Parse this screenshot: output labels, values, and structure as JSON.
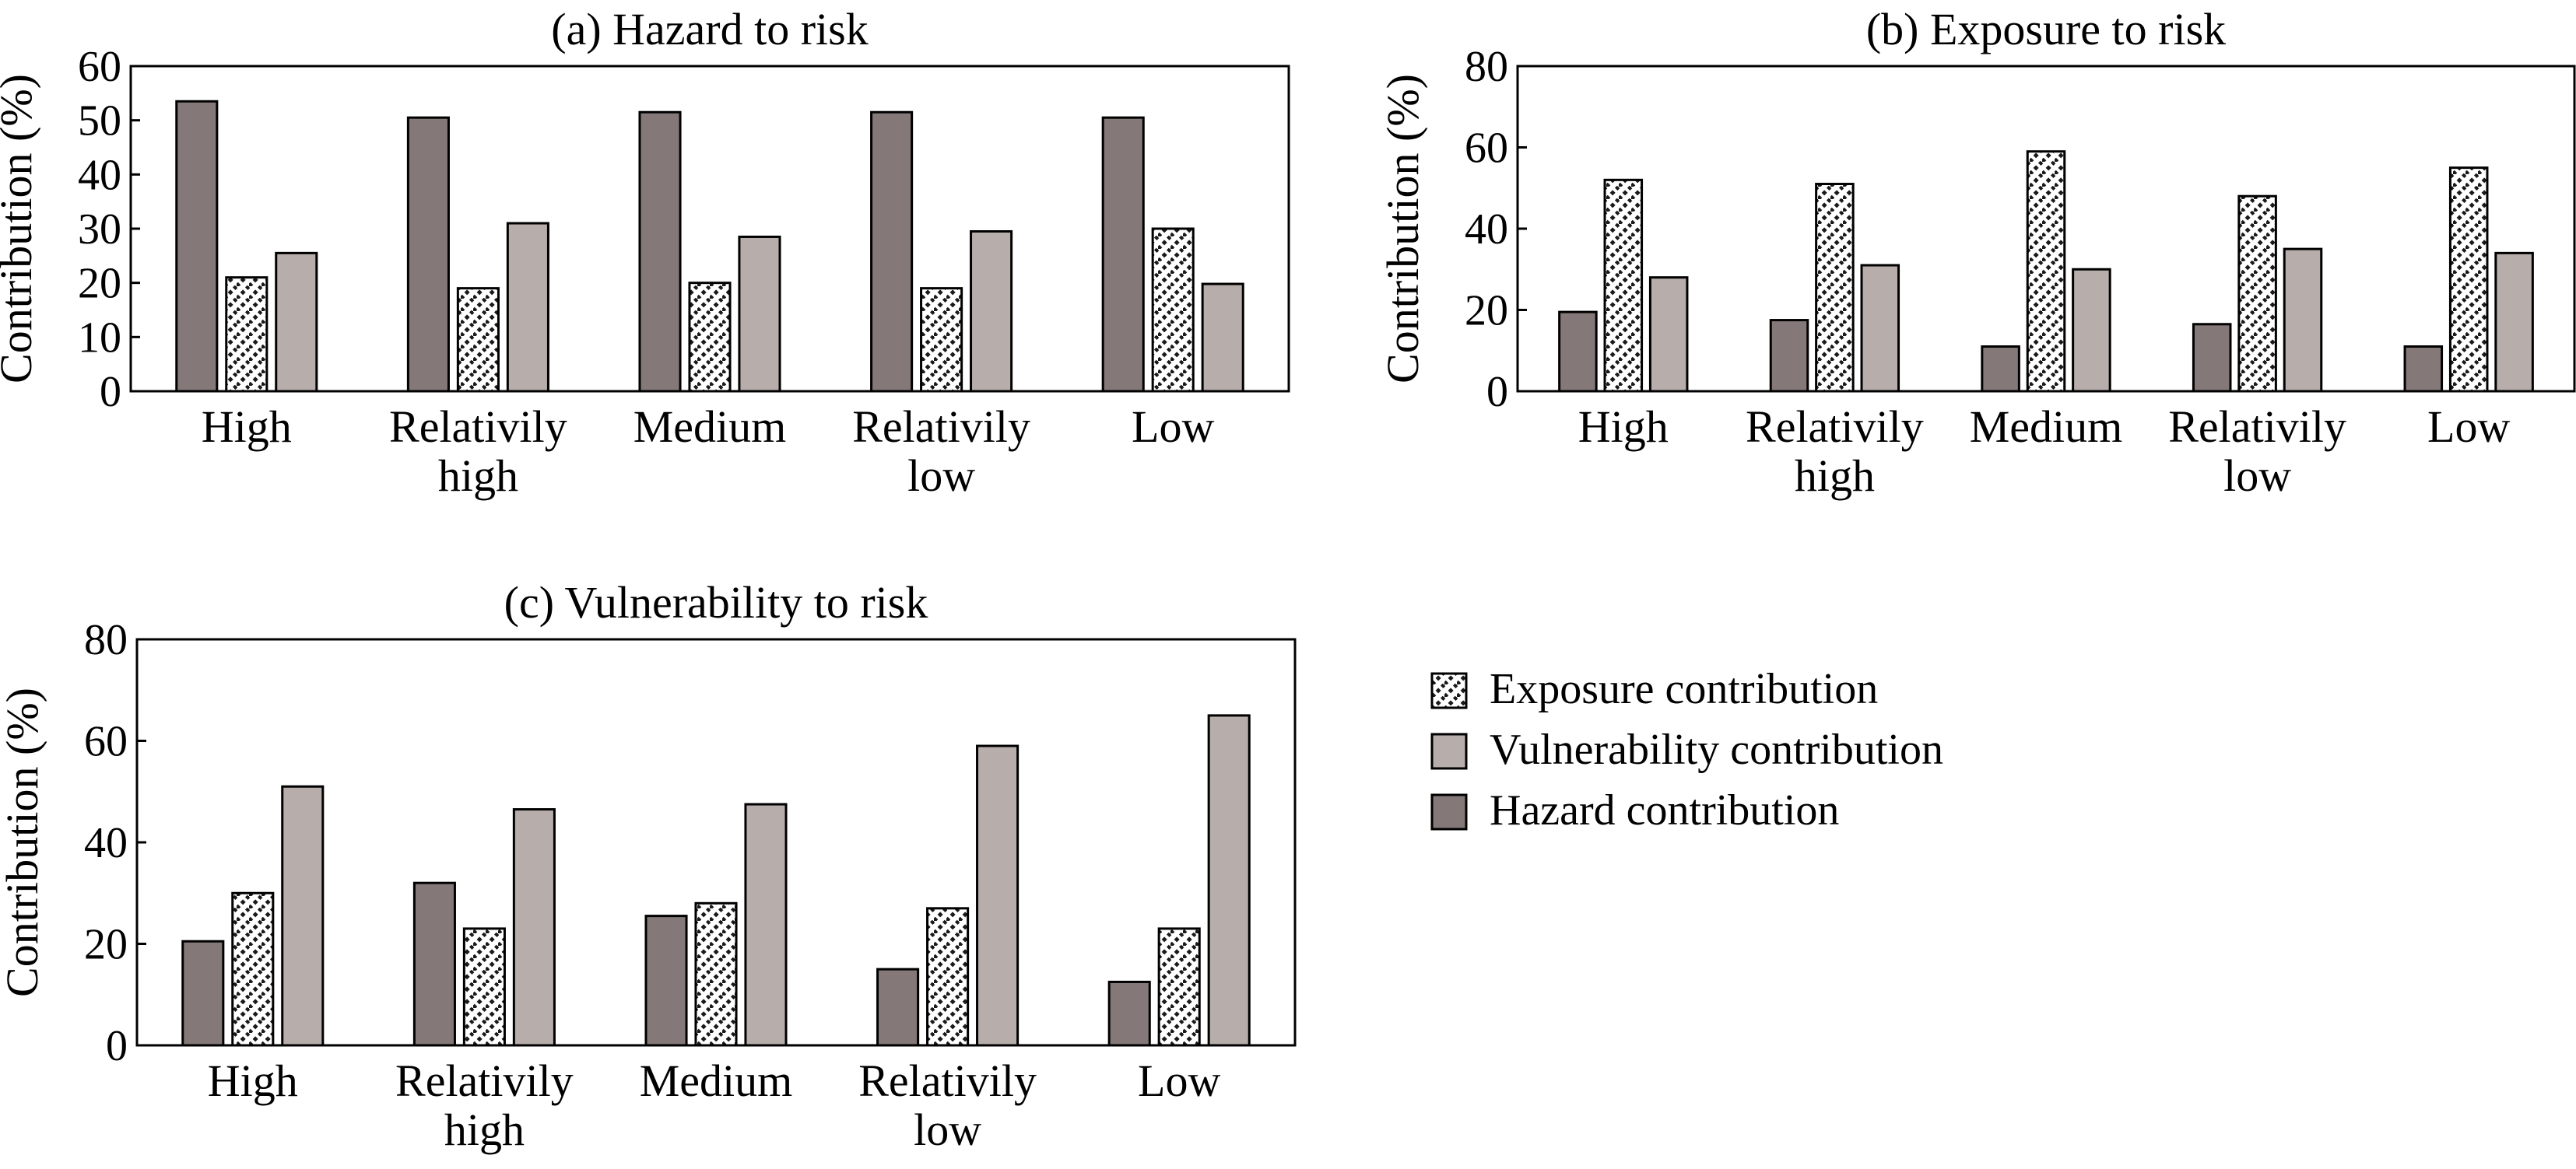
{
  "chart_data": [
    {
      "type": "bar",
      "title": "(a) Hazard to risk",
      "ylabel": "Contribution (%)",
      "xlabel": "",
      "ylim": [
        0,
        60
      ],
      "yticks": [
        0,
        10,
        20,
        30,
        40,
        50,
        60
      ],
      "categories": [
        [
          "High"
        ],
        [
          "Relativily",
          "high"
        ],
        [
          "Medium"
        ],
        [
          "Relativily",
          "low"
        ],
        [
          "Low"
        ]
      ],
      "series": [
        {
          "key": "hazard",
          "values": [
            53.5,
            50.5,
            51.5,
            51.5,
            50.5
          ]
        },
        {
          "key": "exposure",
          "values": [
            21,
            19,
            20,
            19,
            30
          ]
        },
        {
          "key": "vulnerability",
          "values": [
            25.5,
            31,
            28.5,
            29.5,
            19.8
          ]
        }
      ]
    },
    {
      "type": "bar",
      "title": "(b) Exposure to risk",
      "ylabel": "Contribution (%)",
      "xlabel": "",
      "ylim": [
        0,
        80
      ],
      "yticks": [
        0,
        20,
        40,
        60,
        80
      ],
      "categories": [
        [
          "High"
        ],
        [
          "Relativily",
          "high"
        ],
        [
          "Medium"
        ],
        [
          "Relativily",
          "low"
        ],
        [
          "Low"
        ]
      ],
      "series": [
        {
          "key": "hazard",
          "values": [
            19.5,
            17.5,
            11,
            16.5,
            11
          ]
        },
        {
          "key": "exposure",
          "values": [
            52,
            51,
            59,
            48,
            55
          ]
        },
        {
          "key": "vulnerability",
          "values": [
            28,
            31,
            30,
            35,
            34
          ]
        }
      ]
    },
    {
      "type": "bar",
      "title": "(c) Vulnerability to risk",
      "ylabel": "Contribution (%)",
      "xlabel": "",
      "ylim": [
        0,
        80
      ],
      "yticks": [
        0,
        20,
        40,
        60,
        80
      ],
      "categories": [
        [
          "High"
        ],
        [
          "Relativily",
          "high"
        ],
        [
          "Medium"
        ],
        [
          "Relativily",
          "low"
        ],
        [
          "Low"
        ]
      ],
      "series": [
        {
          "key": "hazard",
          "values": [
            20.5,
            32,
            25.5,
            15,
            12.5
          ]
        },
        {
          "key": "exposure",
          "values": [
            30,
            23,
            28,
            27,
            23
          ]
        },
        {
          "key": "vulnerability",
          "values": [
            51,
            46.5,
            47.5,
            59,
            65
          ]
        }
      ]
    }
  ],
  "legend": {
    "position": "right of panel (c)",
    "items": [
      {
        "key": "exposure",
        "label": "Exposure contribution"
      },
      {
        "key": "vulnerability",
        "label": "Vulnerability contribution"
      },
      {
        "key": "hazard",
        "label": "Hazard contribution"
      }
    ]
  },
  "colors": {
    "hazard": "#847978",
    "vulnerability": "#b7aeab",
    "exposure_pattern_fg": "#1a1a1a",
    "exposure_pattern_bg": "#ffffff",
    "axis": "#000000"
  }
}
